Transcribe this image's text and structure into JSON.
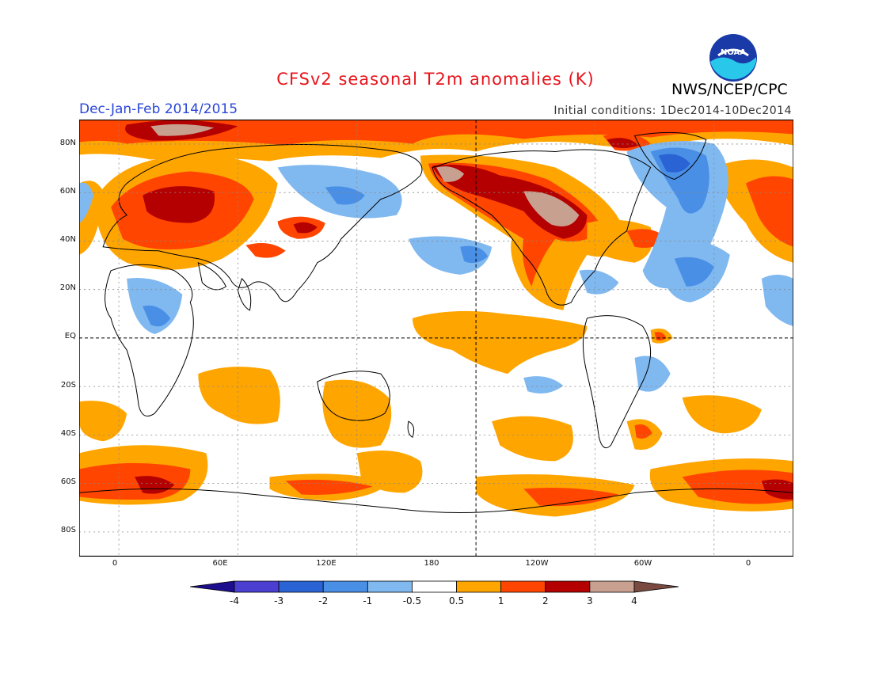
{
  "title": "CFSv2 seasonal T2m anomalies (K)",
  "organization": "NWS/NCEP/CPC",
  "logo_text": "NOAA",
  "period": "Dec-Jan-Feb 2014/2015",
  "initial_conditions": "Initial conditions: 1Dec2014-10Dec2014",
  "lat_labels": [
    "80N",
    "60N",
    "40N",
    "20N",
    "EQ",
    "20S",
    "40S",
    "60S",
    "80S"
  ],
  "lon_labels": [
    "0",
    "60E",
    "120E",
    "180",
    "120W",
    "60W",
    "0"
  ],
  "colorbar": {
    "ticks": [
      "-4",
      "-3",
      "-2",
      "-1",
      "-0.5",
      "0.5",
      "1",
      "2",
      "3",
      "4"
    ],
    "colors": [
      "#1c0e8c",
      "#4a3fd0",
      "#2a64d4",
      "#4a8fe6",
      "#80b8f0",
      "#ffffff",
      "#ffa500",
      "#ff4500",
      "#b40000",
      "#c8a090",
      "#7a4a40"
    ]
  },
  "colors": {
    "warm1": "#ffa500",
    "warm2": "#ff4500",
    "warm3": "#b40000",
    "warm4": "#c8a090",
    "cool1": "#80b8f0",
    "cool2": "#4a8fe6",
    "cool3": "#2a64d4"
  }
}
